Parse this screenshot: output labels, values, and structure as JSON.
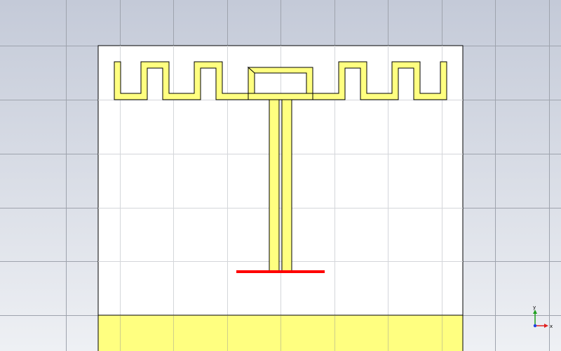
{
  "colors": {
    "background_top": "#c4cad8",
    "background_bottom": "#eef0f4",
    "grid_line": "#9ea3ad",
    "substrate_fill": "#ffffff",
    "outline": "#000000",
    "metal_fill": "#ffff80",
    "port_line": "#ff0000",
    "axis_x": "#e02020",
    "axis_y": "#20a020",
    "axis_z": "#2040e0"
  },
  "axes": {
    "x_label": "x",
    "y_label": "y"
  }
}
